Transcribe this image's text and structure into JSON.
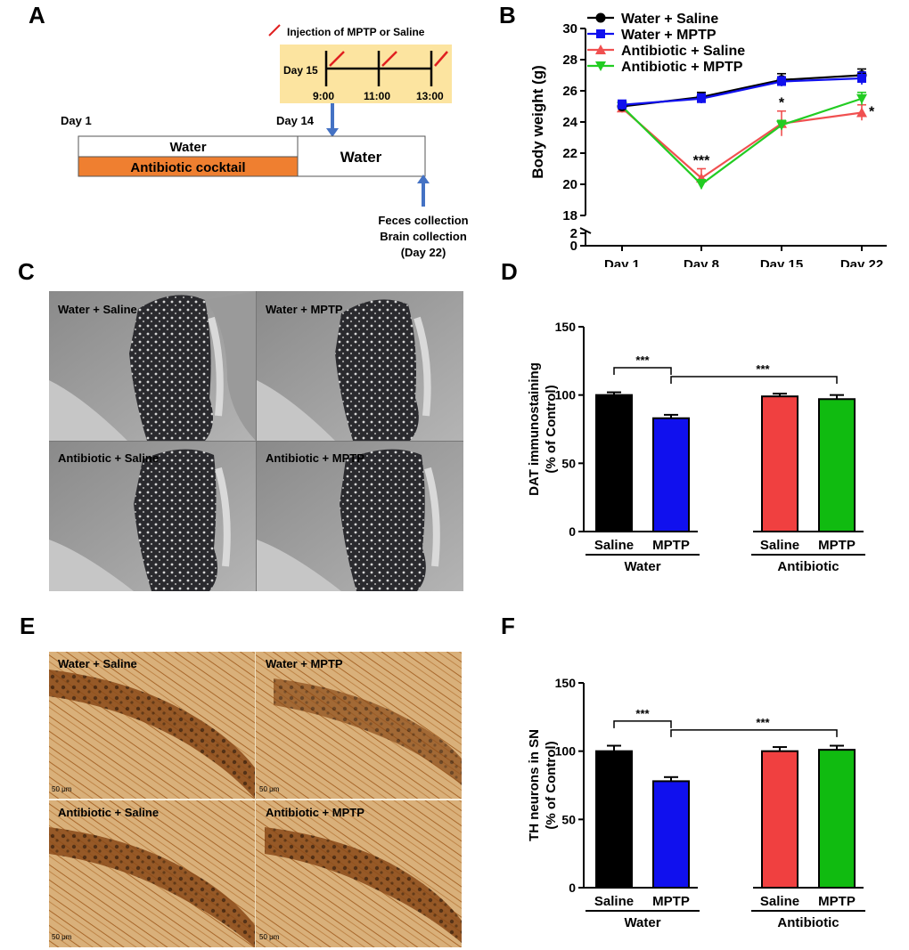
{
  "panels": {
    "A": "A",
    "B": "B",
    "C": "C",
    "D": "D",
    "E": "E",
    "F": "F"
  },
  "schematic": {
    "injection_note": "Injection of MPTP or Saline",
    "day15": "Day 15",
    "times": [
      "9:00",
      "11:00",
      "13:00"
    ],
    "day1": "Day 1",
    "day14": "Day 14",
    "bar_water": "Water",
    "bar_antibiotic": "Antibiotic cocktail",
    "bar_water2": "Water",
    "collection_lines": [
      "Feces collection",
      "Brain collection",
      "(Day 22)"
    ],
    "colors": {
      "antibiotic_bar": "#ef7f30",
      "injection_box": "#fce4a0",
      "arrow": "#4472c4",
      "injection_mark": "#e02020"
    }
  },
  "micro_c": {
    "labels": [
      "Water + Saline",
      "Water + MPTP",
      "Antibiotic + Saline",
      "Antibiotic + MPTP"
    ],
    "style": "grayscale striatum sections"
  },
  "micro_e": {
    "labels": [
      "Water + Saline",
      "Water + MPTP",
      "Antibiotic + Saline",
      "Antibiotic + MPTP"
    ],
    "scale_bar": "50 μm",
    "style": "brown TH-stained substantia nigra sections"
  },
  "chart_data": [
    {
      "type": "line",
      "panel": "B",
      "ylabel": "Body weight (g)",
      "categories": [
        "Day 1",
        "Day 8",
        "Day 15",
        "Day 22"
      ],
      "ylim": [
        18,
        30
      ],
      "yticks": [
        18,
        20,
        22,
        24,
        26,
        28,
        30
      ],
      "axis_break_ticks": [
        0,
        2
      ],
      "series": [
        {
          "name": "Water + Saline",
          "color": "#000000",
          "marker": "circle",
          "values": [
            25.0,
            25.6,
            26.7,
            27.0
          ],
          "err": [
            0.3,
            0.3,
            0.4,
            0.4
          ]
        },
        {
          "name": "Water + MPTP",
          "color": "#1010ee",
          "marker": "square",
          "values": [
            25.1,
            25.5,
            26.6,
            26.8
          ],
          "err": [
            0.3,
            0.3,
            0.3,
            0.4
          ]
        },
        {
          "name": "Antibiotic + Saline",
          "color": "#f05050",
          "marker": "triangle-up",
          "values": [
            24.9,
            20.4,
            23.9,
            24.6
          ],
          "err": [
            0.3,
            0.6,
            0.8,
            0.5
          ]
        },
        {
          "name": "Antibiotic + MPTP",
          "color": "#22cc22",
          "marker": "triangle-down",
          "values": [
            25.0,
            20.0,
            23.8,
            25.5
          ],
          "err": [
            0.3,
            0.3,
            0.3,
            0.4
          ]
        }
      ],
      "annotations": [
        {
          "text": "***",
          "x": "Day 8"
        },
        {
          "text": "*",
          "x": "Day 15"
        },
        {
          "text": "*",
          "x": "Day 22"
        }
      ],
      "legend": "top-left"
    },
    {
      "type": "bar",
      "panel": "D",
      "ylabel_lines": [
        "DAT immunostaining",
        "(% of Control)"
      ],
      "ylim": [
        0,
        150
      ],
      "yticks": [
        0,
        50,
        100,
        150
      ],
      "bars": [
        {
          "label": "Saline",
          "group": "Water",
          "value": 100,
          "err": 2,
          "color": "#000000"
        },
        {
          "label": "MPTP",
          "group": "Water",
          "value": 83,
          "err": 2.5,
          "color": "#1010ee"
        },
        {
          "label": "Saline",
          "group": "Antibiotic",
          "value": 99,
          "err": 2,
          "color": "#f04040"
        },
        {
          "label": "MPTP",
          "group": "Antibiotic",
          "value": 97,
          "err": 3,
          "color": "#10bb10"
        }
      ],
      "groups": [
        "Water",
        "Antibiotic"
      ],
      "significance": [
        {
          "text": "***",
          "from": 0,
          "to": 1
        },
        {
          "text": "***",
          "from": 1,
          "to": 3
        }
      ]
    },
    {
      "type": "bar",
      "panel": "F",
      "ylabel_lines": [
        "TH neurons in SN",
        "(% of Control)"
      ],
      "ylim": [
        0,
        150
      ],
      "yticks": [
        0,
        50,
        100,
        150
      ],
      "bars": [
        {
          "label": "Saline",
          "group": "Water",
          "value": 100,
          "err": 4,
          "color": "#000000"
        },
        {
          "label": "MPTP",
          "group": "Water",
          "value": 78,
          "err": 3,
          "color": "#1010ee"
        },
        {
          "label": "Saline",
          "group": "Antibiotic",
          "value": 100,
          "err": 3,
          "color": "#f04040"
        },
        {
          "label": "MPTP",
          "group": "Antibiotic",
          "value": 101,
          "err": 3,
          "color": "#10bb10"
        }
      ],
      "groups": [
        "Water",
        "Antibiotic"
      ],
      "significance": [
        {
          "text": "***",
          "from": 0,
          "to": 1
        },
        {
          "text": "***",
          "from": 1,
          "to": 3
        }
      ]
    }
  ]
}
